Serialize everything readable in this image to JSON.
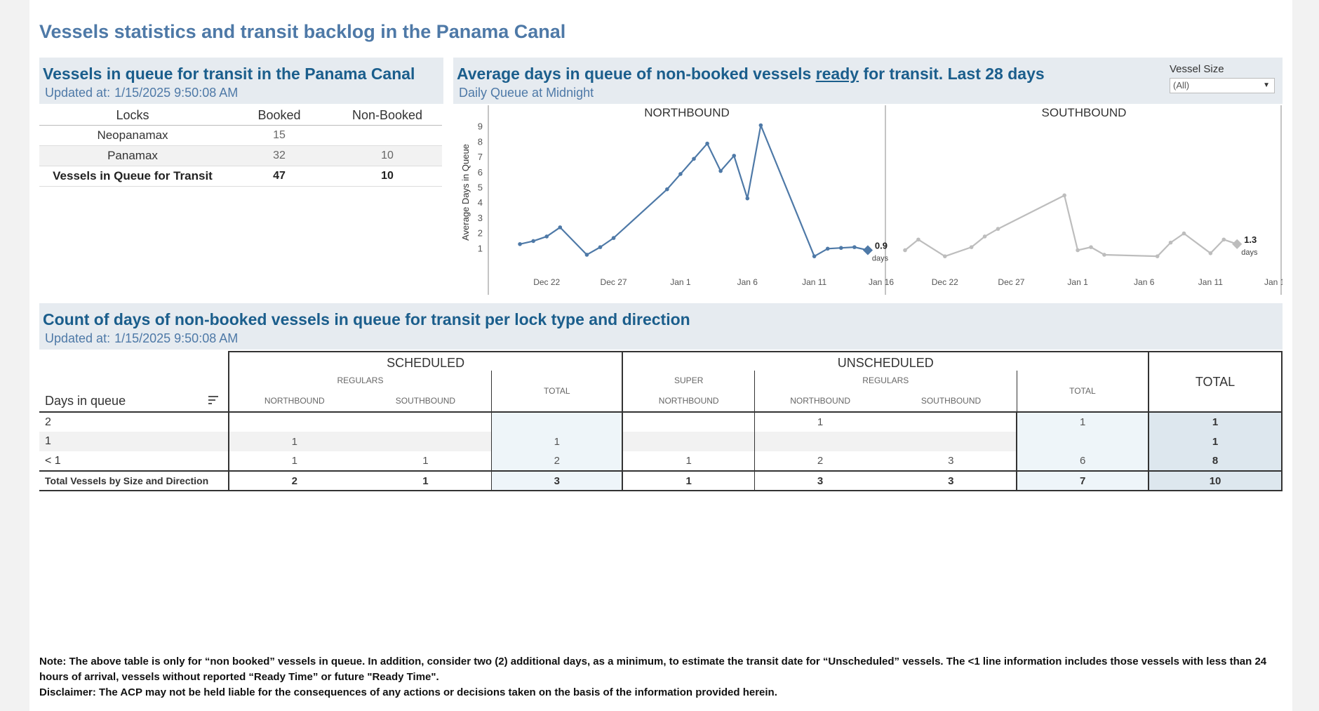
{
  "page": {
    "title": "Vessels statistics and transit backlog in the Panama Canal"
  },
  "queue_panel": {
    "title": "Vessels in queue for transit in the Panama Canal",
    "updated_label": "Updated at:",
    "updated_value": "1/15/2025 9:50:08 AM",
    "columns": [
      "Locks",
      "Booked",
      "Non-Booked"
    ],
    "rows": [
      {
        "lock": "Neopanamax",
        "booked": "15",
        "non_booked": ""
      },
      {
        "lock": "Panamax",
        "booked": "32",
        "non_booked": "10"
      }
    ],
    "total": {
      "lock": "Vessels in Queue for Transit",
      "booked": "47",
      "non_booked": "10"
    }
  },
  "avg_panel": {
    "title_before": "Average days in queue of non-booked vessels ",
    "title_link": "ready",
    "title_after": " for transit. Last 28 days",
    "subtitle": "Daily Queue at Midnight",
    "filter": {
      "label": "Vessel Size",
      "value": "(All)",
      "options_visible": [
        "(All)"
      ]
    }
  },
  "chart_data": {
    "type": "line",
    "ylabel": "Average Days in Queue",
    "y_ticks": [
      1,
      2,
      3,
      4,
      5,
      6,
      7,
      8,
      9
    ],
    "ylim": [
      0,
      9.4
    ],
    "x_tick_labels": [
      "Dec 22",
      "Dec 27",
      "Jan 1",
      "Jan 6",
      "Jan 11",
      "Jan 16"
    ],
    "x_range": [
      "2024-12-19",
      "2025-01-16"
    ],
    "grid": false,
    "colors": {
      "northbound": "#4e79a7",
      "southbound": "#bdbdbd"
    },
    "panels": [
      {
        "name": "NORTHBOUND",
        "last_value_label": "0.9",
        "unit_label": "days",
        "points": [
          [
            "2024-12-20",
            1.3
          ],
          [
            "2024-12-21",
            1.5
          ],
          [
            "2024-12-22",
            1.8
          ],
          [
            "2024-12-23",
            2.4
          ],
          [
            "2024-12-25",
            0.6
          ],
          [
            "2024-12-26",
            1.1
          ],
          [
            "2024-12-27",
            1.7
          ],
          [
            "2024-12-31",
            4.9
          ],
          [
            "2025-01-01",
            5.9
          ],
          [
            "2025-01-02",
            6.9
          ],
          [
            "2025-01-03",
            7.9
          ],
          [
            "2025-01-04",
            6.1
          ],
          [
            "2025-01-05",
            7.1
          ],
          [
            "2025-01-06",
            4.3
          ],
          [
            "2025-01-07",
            9.1
          ],
          [
            "2025-01-11",
            0.5
          ],
          [
            "2025-01-12",
            1.0
          ],
          [
            "2025-01-13",
            1.05
          ],
          [
            "2025-01-14",
            1.1
          ],
          [
            "2025-01-15",
            0.9
          ]
        ]
      },
      {
        "name": "SOUTHBOUND",
        "last_value_label": "1.3",
        "unit_label": "days",
        "points": [
          [
            "2024-12-19",
            0.9
          ],
          [
            "2024-12-20",
            1.6
          ],
          [
            "2024-12-22",
            0.5
          ],
          [
            "2024-12-24",
            1.1
          ],
          [
            "2024-12-25",
            1.8
          ],
          [
            "2024-12-26",
            2.3
          ],
          [
            "2024-12-31",
            4.5
          ],
          [
            "2025-01-01",
            0.9
          ],
          [
            "2025-01-02",
            1.1
          ],
          [
            "2025-01-03",
            0.6
          ],
          [
            "2025-01-07",
            0.5
          ],
          [
            "2025-01-08",
            1.4
          ],
          [
            "2025-01-09",
            2.0
          ],
          [
            "2025-01-11",
            0.7
          ],
          [
            "2025-01-12",
            1.6
          ],
          [
            "2025-01-13",
            1.3
          ]
        ]
      }
    ]
  },
  "count_panel": {
    "title": "Count of days of non-booked vessels in queue for transit per lock type and direction",
    "updated_label": "Updated at:",
    "updated_value": "1/15/2025 9:50:08 AM",
    "row_header": "Days in queue",
    "groups": {
      "scheduled": "SCHEDULED",
      "unscheduled": "UNSCHEDULED",
      "total": "TOTAL"
    },
    "subgroups": {
      "regulars": "REGULARS",
      "super": "SUPER",
      "total": "TOTAL"
    },
    "directions": {
      "northbound": "NORTHBOUND",
      "southbound": "SOUTHBOUND"
    },
    "rows": [
      {
        "label": "2",
        "cells": [
          "",
          "",
          "",
          "",
          "1",
          "",
          "1",
          "1"
        ]
      },
      {
        "label": "1",
        "cells": [
          "1",
          "",
          "1",
          "",
          "",
          "",
          "",
          "1"
        ]
      },
      {
        "label": "< 1",
        "cells": [
          "1",
          "1",
          "2",
          "1",
          "2",
          "3",
          "6",
          "8"
        ]
      }
    ],
    "total_row": {
      "label": "Total Vessels by Size and Direction",
      "cells": [
        "2",
        "1",
        "3",
        "1",
        "3",
        "3",
        "7",
        "10"
      ]
    }
  },
  "note": {
    "line1": "Note:  The above table is only for “non booked” vessels in queue. In addition, consider two (2) additional days, as a minimum, to estimate the transit date for “Unscheduled” vessels.  The <1 line information includes those vessels with less than 24 hours of arrival, vessels without reported “Ready Time” or future \"Ready Time\".",
    "line2": "Disclaimer: The ACP may not be held liable for the consequences of any actions or decisions taken on the basis of the information provided herein."
  }
}
